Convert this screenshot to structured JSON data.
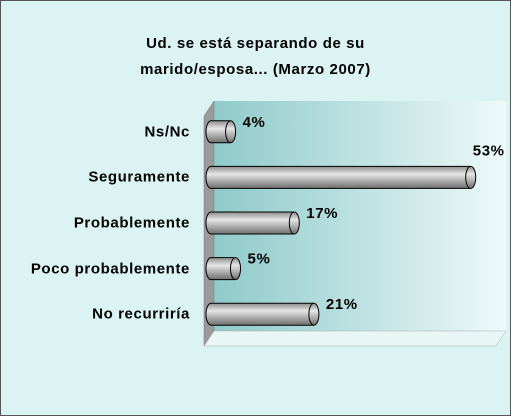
{
  "chart_data": {
    "type": "bar",
    "title": "Ud. se está separando de su marido/esposa... (Marzo 2007)",
    "categories": [
      "Ns/Nc",
      "Seguramente",
      "Probablemente",
      "Poco probablemente",
      "No recurriría"
    ],
    "values": [
      4,
      53,
      17,
      5,
      21
    ],
    "value_labels": [
      "4%",
      "53%",
      "17%",
      "5%",
      "21%"
    ],
    "color": "#b4b4b4",
    "xlim": [
      0,
      60
    ]
  }
}
